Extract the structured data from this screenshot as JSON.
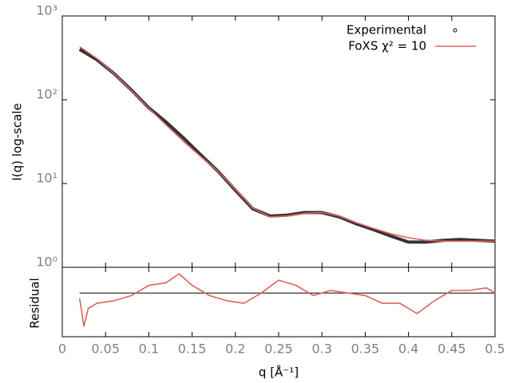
{
  "chart_data": [
    {
      "type": "line",
      "ylabel": "I(q) log-scale",
      "log_y": true,
      "xlim": [
        0,
        0.5
      ],
      "ylim": [
        1,
        1000
      ],
      "yticks": [
        {
          "value": 1,
          "label": "10⁰"
        },
        {
          "value": 10,
          "label": "10¹"
        },
        {
          "value": 100,
          "label": "10²"
        },
        {
          "value": 1000,
          "label": "10³"
        }
      ],
      "legend": "top-right",
      "x": [
        0.02,
        0.04,
        0.06,
        0.08,
        0.1,
        0.12,
        0.14,
        0.16,
        0.18,
        0.2,
        0.22,
        0.24,
        0.26,
        0.28,
        0.3,
        0.32,
        0.34,
        0.36,
        0.38,
        0.4,
        0.42,
        0.44,
        0.46,
        0.48,
        0.5
      ],
      "series": [
        {
          "name": "Experimental",
          "color": "#333333",
          "values": [
            400,
            300,
            205,
            130,
            80,
            54,
            35,
            22,
            14,
            8.3,
            5,
            4.1,
            4.2,
            4.5,
            4.5,
            4.0,
            3.3,
            2.8,
            2.35,
            2.0,
            2.0,
            2.1,
            2.15,
            2.1,
            2.05
          ]
        },
        {
          "name": "FoXS χ² = 10",
          "color": "#e06060",
          "values": [
            430,
            310,
            205,
            128,
            79,
            50,
            32,
            21,
            14,
            8.5,
            5.1,
            4.0,
            4.1,
            4.4,
            4.5,
            4.1,
            3.4,
            2.9,
            2.5,
            2.25,
            2.1,
            2.05,
            2.05,
            2.05,
            2.05
          ]
        }
      ]
    },
    {
      "type": "line",
      "ylabel": "Residual",
      "xlabel": "q [Å⁻¹]",
      "xlim": [
        0,
        0.5
      ],
      "ylim": [
        -1.7,
        1
      ],
      "xticks": [
        0,
        0.05,
        0.1,
        0.15,
        0.2,
        0.25,
        0.3,
        0.35,
        0.4,
        0.45,
        0.5
      ],
      "x": [
        0.02,
        0.025,
        0.03,
        0.04,
        0.06,
        0.08,
        0.1,
        0.12,
        0.135,
        0.15,
        0.17,
        0.19,
        0.21,
        0.23,
        0.25,
        0.27,
        0.29,
        0.31,
        0.33,
        0.35,
        0.37,
        0.39,
        0.41,
        0.43,
        0.45,
        0.47,
        0.49,
        0.5
      ],
      "series": [
        {
          "name": "Residual",
          "color": "#e06060",
          "values": [
            -0.2,
            -1.3,
            -0.6,
            -0.4,
            -0.3,
            -0.1,
            0.3,
            0.4,
            0.75,
            0.3,
            -0.1,
            -0.3,
            -0.4,
            0.0,
            0.5,
            0.3,
            -0.1,
            0.1,
            0.0,
            -0.1,
            -0.4,
            -0.4,
            -0.8,
            -0.3,
            0.1,
            0.1,
            0.2,
            0.0
          ]
        }
      ]
    }
  ]
}
